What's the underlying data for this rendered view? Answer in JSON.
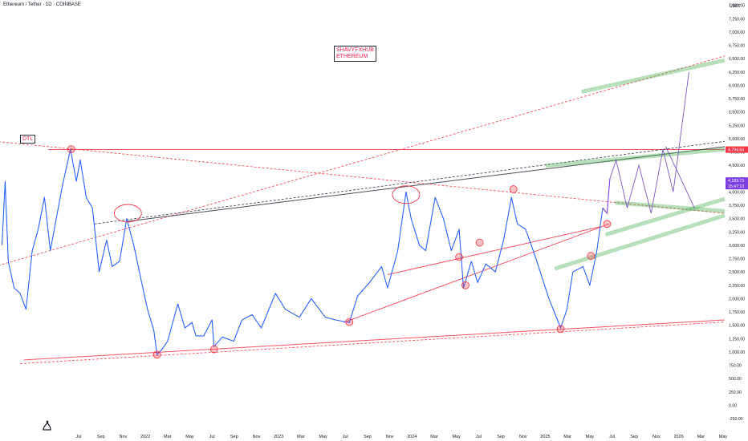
{
  "header": {
    "symbol": "Ethereum / Tether · 1D · COINBASE",
    "currency": "USDT"
  },
  "annotations": {
    "watermark_line1": "SHAVYFXHUB",
    "watermark_line2": "ETHEREUM",
    "dtl": "DTL"
  },
  "colors": {
    "price_line": "#2962ff",
    "price_line_recent": "#7b3fe4",
    "support_red": "#f23645",
    "green_zone": "#4caf50",
    "projection": "#7e57c2",
    "current_price_bg": "#7b3fe4",
    "level_bg": "#f23645"
  },
  "chart_data": {
    "type": "line",
    "title": "Ethereum / Tether · 1D · COINBASE",
    "xlabel": "",
    "ylabel": "",
    "x_tick_labels": [
      "Jul",
      "Sep",
      "Nov",
      "2022",
      "Mar",
      "May",
      "Jul",
      "Sep",
      "Nov",
      "2023",
      "Mar",
      "May",
      "Jul",
      "Sep",
      "Nov",
      "2024",
      "Mar",
      "May",
      "Jul",
      "Sep",
      "Nov",
      "2025",
      "Mar",
      "May",
      "Jul",
      "Sep",
      "Nov",
      "2026",
      "Mar",
      "May"
    ],
    "y_ticks": [
      -250,
      0,
      250,
      500,
      750,
      1000,
      1250,
      1500,
      1750,
      2000,
      2250,
      2500,
      2750,
      3000,
      3250,
      3500,
      3750,
      4000,
      4250,
      4500,
      4750,
      5000,
      5250,
      5500,
      5750,
      6000,
      6250,
      6500,
      6750,
      7000,
      7250,
      7500
    ],
    "y_tick_labels": [
      "-250.00",
      "0.00",
      "250.00",
      "500.00",
      "750.00",
      "1,000.00",
      "1,250.00",
      "1,500.00",
      "1,750.00",
      "2,000.00",
      "2,250.00",
      "2,500.00",
      "2,750.00",
      "3,000.00",
      "3,250.00",
      "3,500.00",
      "3,750.00",
      "4,000.00",
      "4,250.00",
      "4,500.00",
      "4,750.00",
      "5,000.00",
      "5,250.00",
      "5,500.00",
      "5,750.00",
      "6,000.00",
      "6,250.00",
      "6,500.00",
      "6,750.00",
      "7,000.00",
      "7,250.00",
      "7,500.00"
    ],
    "ylim": [
      -400,
      7600
    ],
    "xlim": [
      "2021-05-15",
      "2026-05-31"
    ],
    "grid": false,
    "series": [
      {
        "values": [
          {
            "x": "2021-05-20",
            "y": 3000
          },
          {
            "x": "2021-05-28",
            "y": 4200
          },
          {
            "x": "2021-06-05",
            "y": 2700
          },
          {
            "x": "2021-06-20",
            "y": 2200
          },
          {
            "x": "2021-07-05",
            "y": 2100
          },
          {
            "x": "2021-07-20",
            "y": 1800
          },
          {
            "x": "2021-08-05",
            "y": 2900
          },
          {
            "x": "2021-08-20",
            "y": 3300
          },
          {
            "x": "2021-09-05",
            "y": 3900
          },
          {
            "x": "2021-09-20",
            "y": 2900
          },
          {
            "x": "2021-10-05",
            "y": 3500
          },
          {
            "x": "2021-10-20",
            "y": 4100
          },
          {
            "x": "2021-11-10",
            "y": 4800
          },
          {
            "x": "2021-11-25",
            "y": 4200
          },
          {
            "x": "2021-12-05",
            "y": 4600
          },
          {
            "x": "2021-12-20",
            "y": 3900
          },
          {
            "x": "2022-01-05",
            "y": 3700
          },
          {
            "x": "2022-01-22",
            "y": 2500
          },
          {
            "x": "2022-02-10",
            "y": 3100
          },
          {
            "x": "2022-02-24",
            "y": 2600
          },
          {
            "x": "2022-03-15",
            "y": 2700
          },
          {
            "x": "2022-04-02",
            "y": 3500
          },
          {
            "x": "2022-04-20",
            "y": 3000
          },
          {
            "x": "2022-05-10",
            "y": 2300
          },
          {
            "x": "2022-05-25",
            "y": 1800
          },
          {
            "x": "2022-06-10",
            "y": 1400
          },
          {
            "x": "2022-06-18",
            "y": 950
          },
          {
            "x": "2022-07-01",
            "y": 1050
          },
          {
            "x": "2022-07-15",
            "y": 1200
          },
          {
            "x": "2022-08-10",
            "y": 1900
          },
          {
            "x": "2022-08-28",
            "y": 1450
          },
          {
            "x": "2022-09-15",
            "y": 1550
          },
          {
            "x": "2022-09-25",
            "y": 1300
          },
          {
            "x": "2022-10-15",
            "y": 1300
          },
          {
            "x": "2022-11-05",
            "y": 1600
          },
          {
            "x": "2022-11-10",
            "y": 1100
          },
          {
            "x": "2022-12-01",
            "y": 1280
          },
          {
            "x": "2022-12-30",
            "y": 1200
          },
          {
            "x": "2023-01-20",
            "y": 1600
          },
          {
            "x": "2023-02-15",
            "y": 1700
          },
          {
            "x": "2023-03-10",
            "y": 1450
          },
          {
            "x": "2023-04-15",
            "y": 2100
          },
          {
            "x": "2023-05-10",
            "y": 1800
          },
          {
            "x": "2023-06-15",
            "y": 1650
          },
          {
            "x": "2023-07-15",
            "y": 2000
          },
          {
            "x": "2023-08-20",
            "y": 1650
          },
          {
            "x": "2023-09-15",
            "y": 1600
          },
          {
            "x": "2023-10-20",
            "y": 1550
          },
          {
            "x": "2023-11-10",
            "y": 2050
          },
          {
            "x": "2023-12-10",
            "y": 2300
          },
          {
            "x": "2024-01-10",
            "y": 2600
          },
          {
            "x": "2024-01-25",
            "y": 2200
          },
          {
            "x": "2024-02-20",
            "y": 2900
          },
          {
            "x": "2024-03-12",
            "y": 4000
          },
          {
            "x": "2024-03-25",
            "y": 3500
          },
          {
            "x": "2024-04-15",
            "y": 3000
          },
          {
            "x": "2024-05-01",
            "y": 2900
          },
          {
            "x": "2024-05-25",
            "y": 3900
          },
          {
            "x": "2024-06-15",
            "y": 3500
          },
          {
            "x": "2024-07-05",
            "y": 2900
          },
          {
            "x": "2024-07-25",
            "y": 3300
          },
          {
            "x": "2024-08-05",
            "y": 2200
          },
          {
            "x": "2024-08-25",
            "y": 2700
          },
          {
            "x": "2024-09-10",
            "y": 2300
          },
          {
            "x": "2024-10-01",
            "y": 2650
          },
          {
            "x": "2024-10-25",
            "y": 2500
          },
          {
            "x": "2024-11-15",
            "y": 3100
          },
          {
            "x": "2024-12-05",
            "y": 3900
          },
          {
            "x": "2024-12-20",
            "y": 3400
          },
          {
            "x": "2025-01-10",
            "y": 3300
          },
          {
            "x": "2025-02-03",
            "y": 2800
          },
          {
            "x": "2025-02-25",
            "y": 2300
          },
          {
            "x": "2025-03-10",
            "y": 2000
          },
          {
            "x": "2025-04-09",
            "y": 1450
          },
          {
            "x": "2025-04-25",
            "y": 1800
          },
          {
            "x": "2025-05-10",
            "y": 2500
          },
          {
            "x": "2025-06-05",
            "y": 2600
          },
          {
            "x": "2025-06-22",
            "y": 2250
          },
          {
            "x": "2025-07-10",
            "y": 2900
          },
          {
            "x": "2025-07-25",
            "y": 3700
          },
          {
            "x": "2025-08-05",
            "y": 3600
          },
          {
            "x": "2025-08-12",
            "y": 4250
          }
        ]
      }
    ],
    "projection_path": [
      {
        "x": "2025-08-12",
        "y": 4250
      },
      {
        "x": "2025-08-28",
        "y": 4600
      },
      {
        "x": "2025-09-25",
        "y": 3700
      },
      {
        "x": "2025-10-25",
        "y": 4500
      },
      {
        "x": "2025-11-25",
        "y": 3600
      },
      {
        "x": "2025-12-25",
        "y": 4800
      },
      {
        "x": "2026-01-20",
        "y": 4000
      },
      {
        "x": "2026-03-01",
        "y": 6250
      }
    ],
    "projection_path_2": [
      {
        "x": "2026-01-01",
        "y": 4850
      },
      {
        "x": "2026-03-15",
        "y": 3700
      }
    ],
    "levels": [
      {
        "label": "4,794.64",
        "value": 4794.64,
        "color": "#f23645"
      },
      {
        "label": "4,183.73",
        "value": 4183.73,
        "color": "#7b3fe4"
      },
      {
        "label": "15:47:13",
        "value": 4050,
        "color": "#7b3fe4"
      }
    ],
    "trendlines": [
      {
        "style": "solid",
        "color": "#f23645",
        "points": [
          {
            "x": "2021-09-15",
            "y": 4794.64
          },
          {
            "x": "2026-05-31",
            "y": 4794.64
          }
        ]
      },
      {
        "style": "dashed",
        "color": "#f23645",
        "points": [
          {
            "x": "2021-05-01",
            "y": 4950
          },
          {
            "x": "2026-05-31",
            "y": 3600
          }
        ]
      },
      {
        "style": "dashed",
        "color": "#f23645",
        "points": [
          {
            "x": "2021-05-01",
            "y": 2600
          },
          {
            "x": "2026-05-31",
            "y": 6550
          }
        ]
      },
      {
        "style": "solid",
        "color": "#f23645",
        "points": [
          {
            "x": "2021-07-15",
            "y": 850
          },
          {
            "x": "2026-05-31",
            "y": 1600
          }
        ]
      },
      {
        "style": "dashed",
        "color": "#f23645",
        "points": [
          {
            "x": "2021-07-05",
            "y": 780
          },
          {
            "x": "2026-05-31",
            "y": 1560
          }
        ]
      },
      {
        "style": "solid",
        "color": "#f23645",
        "points": [
          {
            "x": "2023-10-05",
            "y": 1550
          },
          {
            "x": "2025-08-10",
            "y": 3400
          }
        ]
      },
      {
        "style": "solid",
        "color": "#f23645",
        "points": [
          {
            "x": "2024-01-25",
            "y": 2450
          },
          {
            "x": "2025-07-20",
            "y": 3350
          }
        ]
      },
      {
        "style": "solid",
        "color": "#2a2e39",
        "points": [
          {
            "x": "2022-04-05",
            "y": 3450
          },
          {
            "x": "2026-05-31",
            "y": 4850
          }
        ]
      },
      {
        "style": "dashed",
        "color": "#2a2e39",
        "points": [
          {
            "x": "2022-01-10",
            "y": 3400
          },
          {
            "x": "2026-05-31",
            "y": 4950
          }
        ]
      }
    ],
    "green_zones": [
      {
        "points": [
          {
            "x": "2025-06-01",
            "y": 5880
          },
          {
            "x": "2026-05-31",
            "y": 6470
          }
        ]
      },
      {
        "points": [
          {
            "x": "2025-08-25",
            "y": 3800
          },
          {
            "x": "2026-05-31",
            "y": 3640
          }
        ]
      },
      {
        "points": [
          {
            "x": "2025-08-01",
            "y": 3200
          },
          {
            "x": "2026-05-31",
            "y": 3870
          }
        ]
      },
      {
        "points": [
          {
            "x": "2025-03-25",
            "y": 2560
          },
          {
            "x": "2026-05-31",
            "y": 3560
          }
        ]
      },
      {
        "points": [
          {
            "x": "2025-03-01",
            "y": 4490
          },
          {
            "x": "2026-05-31",
            "y": 4800
          }
        ]
      }
    ],
    "circles": [
      {
        "x": "2022-06-18",
        "y": 950
      },
      {
        "x": "2022-11-10",
        "y": 1050
      },
      {
        "x": "2025-04-09",
        "y": 1430
      },
      {
        "x": "2024-08-10",
        "y": 2250
      },
      {
        "x": "2024-07-25",
        "y": 2780
      },
      {
        "x": "2024-09-15",
        "y": 3050
      },
      {
        "x": "2023-10-20",
        "y": 1560
      },
      {
        "x": "2025-06-25",
        "y": 2800
      },
      {
        "x": "2025-08-05",
        "y": 3400
      },
      {
        "x": "2021-11-12",
        "y": 4800
      },
      {
        "x": "2024-12-10",
        "y": 4050
      }
    ],
    "ellipses": [
      {
        "x": "2022-04-05",
        "y": 3600
      },
      {
        "x": "2024-03-12",
        "y": 3950
      }
    ]
  }
}
